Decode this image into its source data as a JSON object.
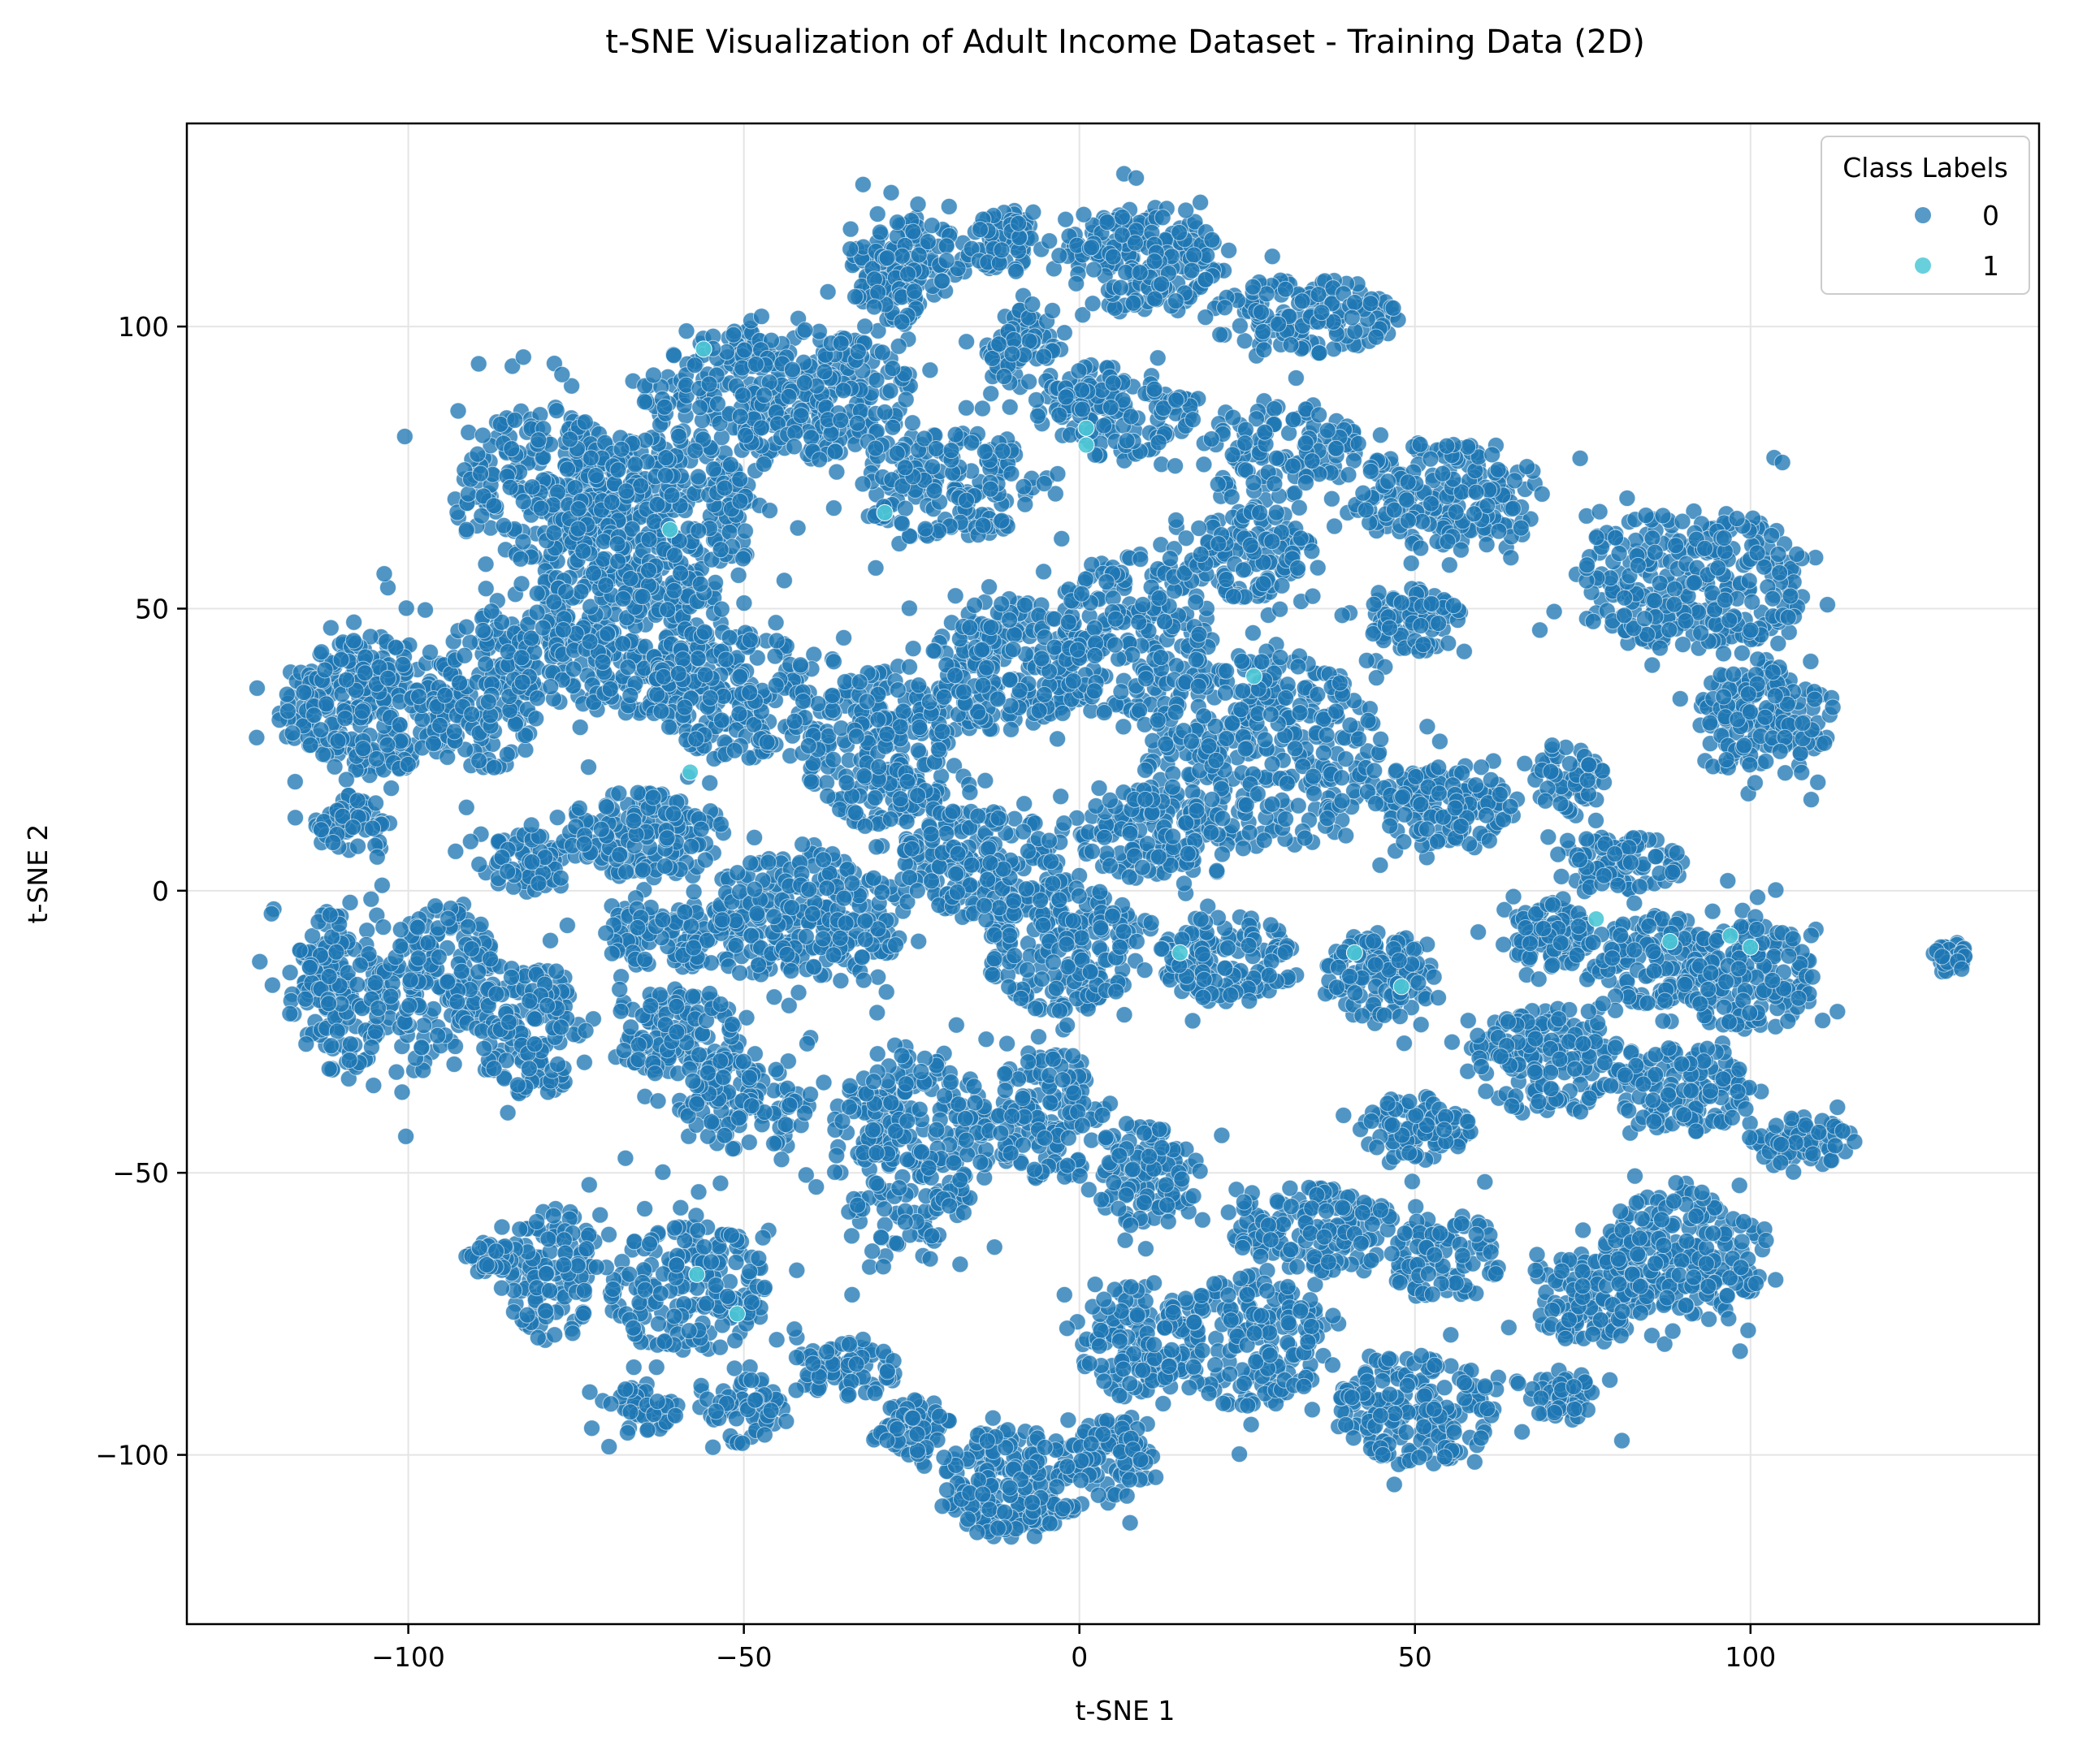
{
  "chart_data": {
    "type": "scatter",
    "title": "t-SNE Visualization of Adult Income Dataset - Training Data (2D)",
    "xlabel": "t-SNE 1",
    "ylabel": "t-SNE 2",
    "xlim": [
      -133,
      143
    ],
    "ylim": [
      -130,
      136
    ],
    "xticks": [
      -100,
      -50,
      0,
      50,
      100
    ],
    "xtick_labels": [
      "−100",
      "−50",
      "0",
      "50",
      "100"
    ],
    "yticks": [
      -100,
      -50,
      0,
      50,
      100
    ],
    "ytick_labels": [
      "−100",
      "−50",
      "0",
      "50",
      "100"
    ],
    "grid": true,
    "legend": {
      "title": "Class Labels",
      "placement": "top-right",
      "entries": [
        {
          "label": "0",
          "color": "#1f77b4"
        },
        {
          "label": "1",
          "color": "#4ec8d6"
        }
      ]
    },
    "series": [
      {
        "name": "0",
        "color": "#1f77b4",
        "clusters": [
          {
            "cx": -105,
            "cy": 33,
            "rx": 14,
            "ry": 12,
            "n": 320
          },
          {
            "cx": -88,
            "cy": 35,
            "rx": 8,
            "ry": 14,
            "n": 140
          },
          {
            "cx": -80,
            "cy": 72,
            "rx": 12,
            "ry": 14,
            "n": 260
          },
          {
            "cx": -70,
            "cy": 45,
            "rx": 14,
            "ry": 14,
            "n": 300
          },
          {
            "cx": -62,
            "cy": 65,
            "rx": 14,
            "ry": 16,
            "n": 320
          },
          {
            "cx": -45,
            "cy": 88,
            "rx": 20,
            "ry": 12,
            "n": 380
          },
          {
            "cx": -25,
            "cy": 112,
            "rx": 9,
            "ry": 7,
            "n": 120
          },
          {
            "cx": -11,
            "cy": 115,
            "rx": 5,
            "ry": 6,
            "n": 70
          },
          {
            "cx": 10,
            "cy": 112,
            "rx": 12,
            "ry": 10,
            "n": 200
          },
          {
            "cx": 33,
            "cy": 102,
            "rx": 14,
            "ry": 7,
            "n": 150
          },
          {
            "cx": -8,
            "cy": 96,
            "rx": 6,
            "ry": 7,
            "n": 70
          },
          {
            "cx": 5,
            "cy": 85,
            "rx": 12,
            "ry": 8,
            "n": 150
          },
          {
            "cx": 30,
            "cy": 78,
            "rx": 12,
            "ry": 9,
            "n": 130
          },
          {
            "cx": -20,
            "cy": 72,
            "rx": 14,
            "ry": 10,
            "n": 180
          },
          {
            "cx": 55,
            "cy": 70,
            "rx": 14,
            "ry": 10,
            "n": 200
          },
          {
            "cx": 50,
            "cy": 48,
            "rx": 7,
            "ry": 6,
            "n": 90
          },
          {
            "cx": 92,
            "cy": 55,
            "rx": 17,
            "ry": 13,
            "n": 300
          },
          {
            "cx": 102,
            "cy": 30,
            "rx": 10,
            "ry": 10,
            "n": 160
          },
          {
            "cx": -52,
            "cy": 35,
            "rx": 12,
            "ry": 12,
            "n": 220
          },
          {
            "cx": -30,
            "cy": 25,
            "rx": 12,
            "ry": 14,
            "n": 260
          },
          {
            "cx": -10,
            "cy": 40,
            "rx": 12,
            "ry": 12,
            "n": 220
          },
          {
            "cx": 8,
            "cy": 45,
            "rx": 12,
            "ry": 15,
            "n": 220
          },
          {
            "cx": 25,
            "cy": 60,
            "rx": 10,
            "ry": 8,
            "n": 130
          },
          {
            "cx": 28,
            "cy": 25,
            "rx": 18,
            "ry": 18,
            "n": 380
          },
          {
            "cx": 55,
            "cy": 15,
            "rx": 10,
            "ry": 8,
            "n": 140
          },
          {
            "cx": 80,
            "cy": 5,
            "rx": 10,
            "ry": 5,
            "n": 90
          },
          {
            "cx": 73,
            "cy": 20,
            "rx": 5,
            "ry": 7,
            "n": 60
          },
          {
            "cx": -108,
            "cy": 12,
            "rx": 6,
            "ry": 5,
            "n": 60
          },
          {
            "cx": -110,
            "cy": -18,
            "rx": 8,
            "ry": 14,
            "n": 180
          },
          {
            "cx": -95,
            "cy": -15,
            "rx": 8,
            "ry": 14,
            "n": 170
          },
          {
            "cx": -82,
            "cy": -25,
            "rx": 8,
            "ry": 12,
            "n": 150
          },
          {
            "cx": -82,
            "cy": 5,
            "rx": 6,
            "ry": 6,
            "n": 70
          },
          {
            "cx": -65,
            "cy": 10,
            "rx": 12,
            "ry": 8,
            "n": 150
          },
          {
            "cx": -60,
            "cy": -8,
            "rx": 10,
            "ry": 6,
            "n": 110
          },
          {
            "cx": -60,
            "cy": -25,
            "rx": 10,
            "ry": 8,
            "n": 130
          },
          {
            "cx": -40,
            "cy": -5,
            "rx": 14,
            "ry": 12,
            "n": 260
          },
          {
            "cx": -15,
            "cy": 5,
            "rx": 12,
            "ry": 10,
            "n": 200
          },
          {
            "cx": -3,
            "cy": -10,
            "rx": 12,
            "ry": 12,
            "n": 230
          },
          {
            "cx": 10,
            "cy": 10,
            "rx": 10,
            "ry": 8,
            "n": 130
          },
          {
            "cx": 22,
            "cy": -12,
            "rx": 10,
            "ry": 8,
            "n": 150
          },
          {
            "cx": 45,
            "cy": -15,
            "rx": 8,
            "ry": 8,
            "n": 120
          },
          {
            "cx": 70,
            "cy": -8,
            "rx": 6,
            "ry": 6,
            "n": 90
          },
          {
            "cx": 85,
            "cy": -12,
            "rx": 10,
            "ry": 8,
            "n": 140
          },
          {
            "cx": 100,
            "cy": -15,
            "rx": 10,
            "ry": 10,
            "n": 160
          },
          {
            "cx": 108,
            "cy": -45,
            "rx": 8,
            "ry": 5,
            "n": 70
          },
          {
            "cx": 130,
            "cy": -12,
            "rx": 3,
            "ry": 3,
            "n": 30
          },
          {
            "cx": 70,
            "cy": -30,
            "rx": 12,
            "ry": 10,
            "n": 170
          },
          {
            "cx": 90,
            "cy": -35,
            "rx": 10,
            "ry": 8,
            "n": 130
          },
          {
            "cx": 50,
            "cy": -42,
            "rx": 8,
            "ry": 6,
            "n": 90
          },
          {
            "cx": -50,
            "cy": -38,
            "rx": 10,
            "ry": 8,
            "n": 120
          },
          {
            "cx": -25,
            "cy": -45,
            "rx": 12,
            "ry": 18,
            "n": 280
          },
          {
            "cx": -5,
            "cy": -40,
            "rx": 8,
            "ry": 12,
            "n": 150
          },
          {
            "cx": 10,
            "cy": -50,
            "rx": 8,
            "ry": 10,
            "n": 120
          },
          {
            "cx": 35,
            "cy": -60,
            "rx": 12,
            "ry": 8,
            "n": 150
          },
          {
            "cx": 55,
            "cy": -65,
            "rx": 8,
            "ry": 8,
            "n": 100
          },
          {
            "cx": 75,
            "cy": -72,
            "rx": 8,
            "ry": 8,
            "n": 110
          },
          {
            "cx": 90,
            "cy": -65,
            "rx": 12,
            "ry": 12,
            "n": 220
          },
          {
            "cx": 72,
            "cy": -90,
            "rx": 5,
            "ry": 4,
            "n": 60
          },
          {
            "cx": 50,
            "cy": -92,
            "rx": 12,
            "ry": 10,
            "n": 200
          },
          {
            "cx": 25,
            "cy": -80,
            "rx": 12,
            "ry": 12,
            "n": 200
          },
          {
            "cx": 8,
            "cy": -80,
            "rx": 8,
            "ry": 10,
            "n": 130
          },
          {
            "cx": -10,
            "cy": -105,
            "rx": 10,
            "ry": 10,
            "n": 200
          },
          {
            "cx": 5,
            "cy": -100,
            "rx": 6,
            "ry": 8,
            "n": 90
          },
          {
            "cx": -35,
            "cy": -85,
            "rx": 8,
            "ry": 5,
            "n": 70
          },
          {
            "cx": -25,
            "cy": -95,
            "rx": 6,
            "ry": 5,
            "n": 60
          },
          {
            "cx": -50,
            "cy": -92,
            "rx": 6,
            "ry": 6,
            "n": 60
          },
          {
            "cx": -58,
            "cy": -70,
            "rx": 12,
            "ry": 12,
            "n": 200
          },
          {
            "cx": -78,
            "cy": -68,
            "rx": 8,
            "ry": 12,
            "n": 130
          },
          {
            "cx": -88,
            "cy": -65,
            "rx": 4,
            "ry": 3,
            "n": 40
          },
          {
            "cx": -65,
            "cy": -92,
            "rx": 5,
            "ry": 5,
            "n": 50
          },
          {
            "cx": -28,
            "cy": 105,
            "rx": 5,
            "ry": 5,
            "n": 50
          }
        ]
      },
      {
        "name": "1",
        "color": "#4ec8d6",
        "points": [
          [
            -56,
            96
          ],
          [
            -61,
            64
          ],
          [
            -29,
            67
          ],
          [
            1,
            82
          ],
          [
            1,
            79
          ],
          [
            -58,
            21
          ],
          [
            26,
            38
          ],
          [
            15,
            -11
          ],
          [
            41,
            -11
          ],
          [
            48,
            -17
          ],
          [
            77,
            -5
          ],
          [
            88,
            -9
          ],
          [
            97,
            -8
          ],
          [
            100,
            -10
          ],
          [
            -57,
            -68
          ],
          [
            -51,
            -75
          ]
        ]
      }
    ]
  }
}
